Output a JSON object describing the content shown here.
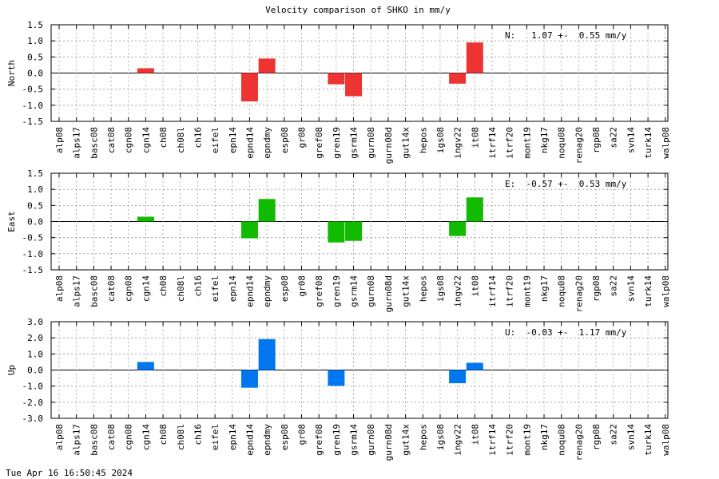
{
  "title": "Velocity comparison of SHKO in mm/y",
  "footer_timestamp": "Tue Apr 16 16:50:45 2024",
  "chart_data": {
    "type": "bar",
    "categories": [
      "alp08",
      "alps17",
      "basc08",
      "cat08",
      "cgn08",
      "cgn14",
      "ch08",
      "ch08l",
      "ch16",
      "eifel",
      "epn14",
      "epnd14",
      "epndmy",
      "esp08",
      "gr08",
      "gref08",
      "gren19",
      "gsrm14",
      "gurn08",
      "gurn08d",
      "gut14x",
      "hepos",
      "igs08",
      "ingv22",
      "it08",
      "itrf14",
      "itrf20",
      "mont19",
      "nkg17",
      "noqu08",
      "renag20",
      "rgp08",
      "sa22",
      "svn14",
      "turk14",
      "walp08"
    ],
    "grid": true,
    "panels": [
      {
        "ylabel": "North",
        "color": "#ee3333",
        "ylim": [
          -1.5,
          1.5
        ],
        "yticks": [
          -1.5,
          -1.0,
          -0.5,
          0.0,
          0.5,
          1.0,
          1.5
        ],
        "yticklabels": [
          "-1.5",
          "-1.0",
          "-0.5",
          "0.0",
          "0.5",
          "1.0",
          "1.5"
        ],
        "annotation": "N:   1.07 +-  0.55 mm/y",
        "values": [
          null,
          null,
          null,
          null,
          null,
          0.15,
          null,
          null,
          null,
          null,
          null,
          -0.88,
          0.45,
          null,
          null,
          null,
          -0.35,
          -0.72,
          null,
          null,
          null,
          null,
          null,
          -0.33,
          0.95,
          null,
          null,
          null,
          null,
          null,
          null,
          null,
          null,
          null,
          null,
          null
        ]
      },
      {
        "ylabel": "East",
        "color": "#11bb00",
        "ylim": [
          -1.5,
          1.5
        ],
        "yticks": [
          -1.5,
          -1.0,
          -0.5,
          0.0,
          0.5,
          1.0,
          1.5
        ],
        "yticklabels": [
          "-1.5",
          "-1.0",
          "-0.5",
          "0.0",
          "0.5",
          "1.0",
          "1.5"
        ],
        "annotation": "E:  -0.57 +-  0.53 mm/y",
        "values": [
          null,
          null,
          null,
          null,
          null,
          0.15,
          null,
          null,
          null,
          null,
          null,
          -0.52,
          0.7,
          null,
          null,
          null,
          -0.65,
          -0.6,
          null,
          null,
          null,
          null,
          null,
          -0.45,
          0.75,
          null,
          null,
          null,
          null,
          null,
          null,
          null,
          null,
          null,
          null,
          null
        ]
      },
      {
        "ylabel": "Up",
        "color": "#0077ee",
        "ylim": [
          -3.0,
          3.0
        ],
        "yticks": [
          -3.0,
          -2.0,
          -1.0,
          0.0,
          1.0,
          2.0,
          3.0
        ],
        "yticklabels": [
          "-3.0",
          "-2.0",
          "-1.0",
          "0.0",
          "1.0",
          "2.0",
          "3.0"
        ],
        "annotation": "U:  -0.03 +-  1.17 mm/y",
        "values": [
          null,
          null,
          null,
          null,
          null,
          0.5,
          null,
          null,
          null,
          null,
          null,
          -1.1,
          1.92,
          null,
          null,
          null,
          -0.98,
          null,
          null,
          null,
          null,
          null,
          null,
          -0.82,
          0.45,
          null,
          null,
          null,
          null,
          null,
          null,
          null,
          null,
          null,
          null,
          null
        ]
      }
    ]
  }
}
